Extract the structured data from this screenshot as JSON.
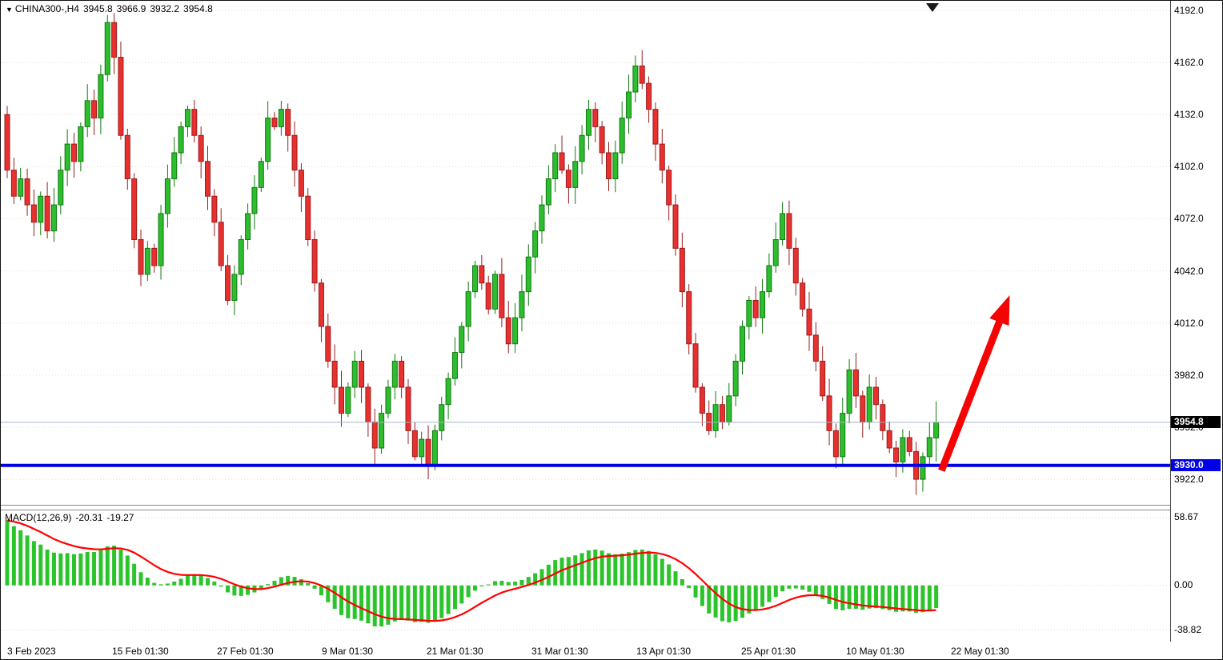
{
  "quote": {
    "marker": "▼",
    "symbol": "CHINA300-,H4",
    "open": "3945.8",
    "high": "3966.9",
    "low": "3932.2",
    "close": "3954.8"
  },
  "indicator_label": {
    "name": "MACD(12,26,9)",
    "macd": "-20.31",
    "signal": "-19.27"
  },
  "price_axis": {
    "ticks": [
      "4192.0",
      "4162.0",
      "4132.0",
      "4102.0",
      "4072.0",
      "4042.0",
      "4012.0",
      "3982.0",
      "3952.0",
      "3922.0"
    ],
    "current_badge": "3954.8",
    "support_badge": "3930.0"
  },
  "macd_axis": {
    "ticks": [
      "58.67",
      "0.00",
      "-38.82"
    ]
  },
  "colors": {
    "background": "#FFFFFF",
    "bull_fill": "#2EBD2E",
    "bull_stroke": "#0E7A0E",
    "bear_fill": "#E8312F",
    "bear_stroke": "#9B1C1C",
    "grid": "#DBDBDB",
    "support_line": "#0000E6",
    "bid_line": "#A8B4C8",
    "histogram": "#2BC42B",
    "signal": "#FF0000",
    "arrow": "#F40404",
    "badge_current_bg": "#000000",
    "badge_support_bg": "#0000E6",
    "badge_text": "#FFFFFF",
    "axis_text": "#000000",
    "marker": "#1A1A1A"
  },
  "chart_data": {
    "type": "candlestick",
    "title": "CHINA300-,H4",
    "timeframe": "H4",
    "x_tick_labels": [
      "3 Feb 2023",
      "15 Feb 01:30",
      "27 Feb 01:30",
      "9 Mar 01:30",
      "21 Mar 01:30",
      "31 Mar 01:30",
      "13 Apr 01:30",
      "25 Apr 01:30",
      "10 May 01:30",
      "22 May 01:30"
    ],
    "price_ylim": [
      3907.3,
      4197.5
    ],
    "price_tick_values": [
      4192.0,
      4162.0,
      4132.0,
      4102.0,
      4072.0,
      4042.0,
      4012.0,
      3982.0,
      3952.0,
      3922.0
    ],
    "closes": [
      4100,
      4085,
      4095,
      4080,
      4070,
      4085,
      4065,
      4080,
      4100,
      4115,
      4105,
      4125,
      4140,
      4130,
      4155,
      4185,
      4165,
      4120,
      4095,
      4060,
      4040,
      4055,
      4045,
      4075,
      4095,
      4110,
      4125,
      4135,
      4120,
      4105,
      4085,
      4070,
      4045,
      4025,
      4040,
      4060,
      4075,
      4090,
      4105,
      4130,
      4125,
      4135,
      4120,
      4100,
      4085,
      4060,
      4035,
      4010,
      3990,
      3975,
      3960,
      3975,
      3990,
      3975,
      3955,
      3940,
      3960,
      3975,
      3990,
      3975,
      3950,
      3935,
      3945,
      3930,
      3950,
      3965,
      3980,
      3995,
      4010,
      4030,
      4045,
      4035,
      4020,
      4040,
      4015,
      4000,
      4015,
      4030,
      4050,
      4065,
      4080,
      4095,
      4110,
      4100,
      4090,
      4105,
      4120,
      4135,
      4125,
      4110,
      4095,
      4110,
      4130,
      4145,
      4160,
      4150,
      4135,
      4115,
      4100,
      4080,
      4055,
      4030,
      4000,
      3975,
      3960,
      3950,
      3965,
      3955,
      3970,
      3990,
      4010,
      4025,
      4015,
      4030,
      4045,
      4060,
      4075,
      4055,
      4035,
      4020,
      4005,
      3990,
      3970,
      3950,
      3935,
      3960,
      3985,
      3970,
      3955,
      3975,
      3965,
      3950,
      3940,
      3932,
      3946,
      3938,
      3922,
      3935,
      3946,
      3954.8
    ],
    "first_open": 4132,
    "deep_low_bar": 136,
    "deep_low": 3913,
    "last_bar_ohlc": {
      "open": 3945.8,
      "high": 3966.9,
      "low": 3932.2,
      "close": 3954.8
    },
    "bid_price": 3954.8,
    "support_line_price": 3930.0,
    "annotations": [
      {
        "type": "arrow",
        "color": "#F40404",
        "from_bar": 139.8,
        "from_price": 3927,
        "to_bar": 150,
        "to_price": 4028
      }
    ],
    "indicator": {
      "type": "MACD",
      "params": [
        12,
        26,
        9
      ],
      "last_macd": -20.31,
      "last_signal": -19.27,
      "ylim": [
        -48,
        65
      ],
      "axis_ticks": [
        58.67,
        0,
        -38.82
      ]
    }
  }
}
